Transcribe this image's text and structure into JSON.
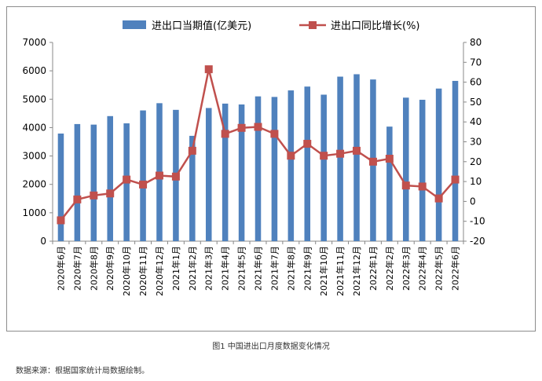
{
  "chart_data": {
    "type": "bar+line",
    "categories": [
      "2020年6月",
      "2020年7月",
      "2020年8月",
      "2020年9月",
      "2020年10月",
      "2020年11月",
      "2020年12月",
      "2021年1月",
      "2021年2月",
      "2021年3月",
      "2021年4月",
      "2021年5月",
      "2021年6月",
      "2021年7月",
      "2021年8月",
      "2021年9月",
      "2021年10月",
      "2021年11月",
      "2021年12月",
      "2022年1月",
      "2022年2月",
      "2022年3月",
      "2022年4月",
      "2022年5月",
      "2022年6月"
    ],
    "series": [
      {
        "name": "进出口当期值(亿美元)",
        "type": "bar",
        "axis": "left",
        "color": "#4f81bd",
        "values": [
          3790,
          4125,
          4105,
          4405,
          4150,
          4605,
          4860,
          4625,
          3710,
          4690,
          4845,
          4815,
          5100,
          5080,
          5310,
          5445,
          5160,
          5795,
          5880,
          5695,
          4035,
          5055,
          4980,
          5375,
          5645
        ]
      },
      {
        "name": "进出口同比增长(%)",
        "type": "line",
        "axis": "right",
        "color": "#c0504d",
        "values": [
          -9.5,
          1.0,
          3.0,
          4.0,
          11.0,
          8.5,
          13.0,
          12.5,
          25.5,
          66.5,
          34.0,
          37.0,
          37.5,
          34.0,
          23.0,
          29.0,
          23.0,
          24.0,
          25.5,
          20.0,
          21.5,
          8.0,
          7.5,
          1.5,
          11.0
        ]
      }
    ],
    "y_left": {
      "min": 0,
      "max": 7000,
      "ticks": [
        "0",
        "1000",
        "2000",
        "3000",
        "4000",
        "5000",
        "6000",
        "7000"
      ]
    },
    "y_right": {
      "min": -20,
      "max": 80,
      "ticks": [
        "-20",
        "-10",
        "0",
        "10",
        "20",
        "30",
        "40",
        "50",
        "60",
        "70",
        "80"
      ]
    },
    "legend_position": "top",
    "grid": false
  },
  "caption": "图1 中国进出口月度数据变化情况",
  "source_note": "数据来源：根据国家统计局数据绘制。"
}
